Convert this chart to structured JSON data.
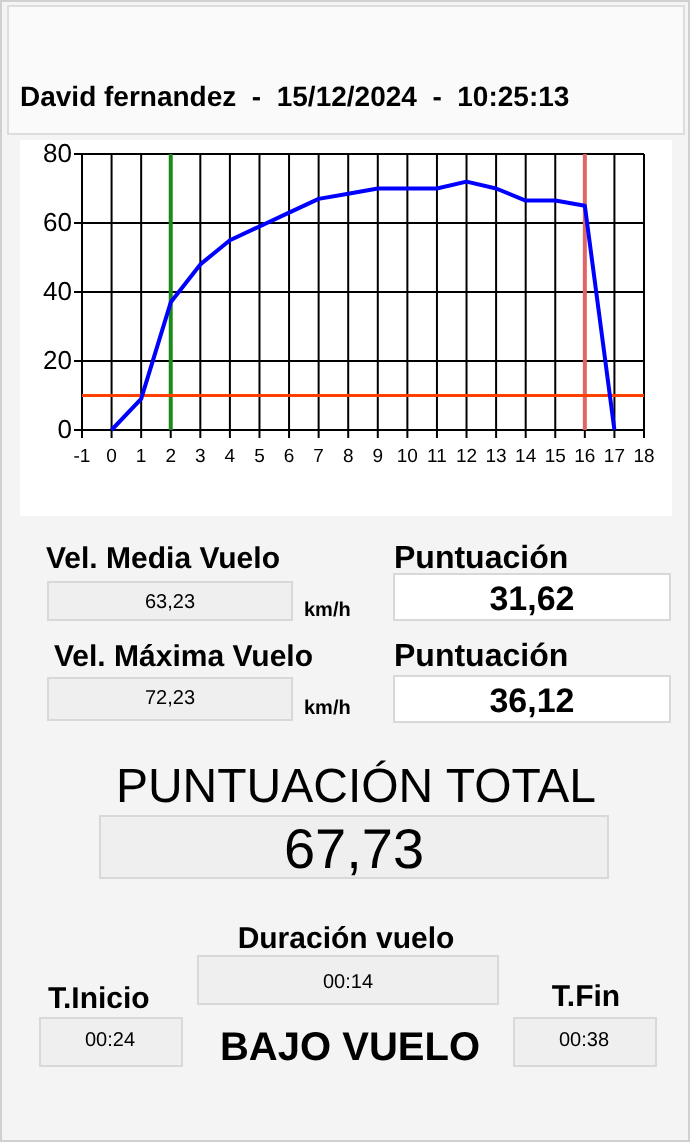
{
  "chart_data": [
    {
      "type": "line",
      "title": "David fernandez  -  15/12/2024  -  10:25:13",
      "x": [
        0,
        1,
        2,
        3,
        4,
        5,
        6,
        7,
        8,
        9,
        10,
        11,
        12,
        13,
        14,
        15,
        16,
        17
      ],
      "series": [
        {
          "color": "#0000ff",
          "values": [
            0,
            9,
            37,
            48,
            55,
            59,
            63,
            67,
            68.5,
            70,
            70,
            70,
            72,
            70,
            66.5,
            66.5,
            65,
            0
          ]
        }
      ],
      "xlim": [
        -1,
        18
      ],
      "xticks": [
        -1,
        0,
        1,
        2,
        3,
        4,
        5,
        6,
        7,
        8,
        9,
        10,
        11,
        12,
        13,
        14,
        15,
        16,
        17,
        18
      ],
      "ylim": [
        0,
        80
      ],
      "yticks": [
        0,
        20,
        40,
        60,
        80
      ],
      "grid": true,
      "marker": "none",
      "line_style": "solid",
      "ref_lines": [
        {
          "axis": "x",
          "value": 2,
          "color": "#1a8a1a"
        },
        {
          "axis": "x",
          "value": 16,
          "color": "#e06666"
        },
        {
          "axis": "y",
          "value": 10,
          "color": "#ff4000"
        }
      ]
    },
    {
      "type": "other",
      "annotations": [
        "Vel. Media Vuelo",
        "63,23",
        "km/h",
        "Puntuación",
        "31,62",
        "Vel. Máxima Vuelo",
        "72,23",
        "km/h",
        "Puntuación",
        "36,12",
        "PUNTUACIÓN TOTAL",
        "67,73",
        "Duración vuelo",
        "00:14",
        "T.Inicio",
        "00:24",
        "BAJO VUELO",
        "T.Fin",
        "00:38"
      ]
    }
  ]
}
